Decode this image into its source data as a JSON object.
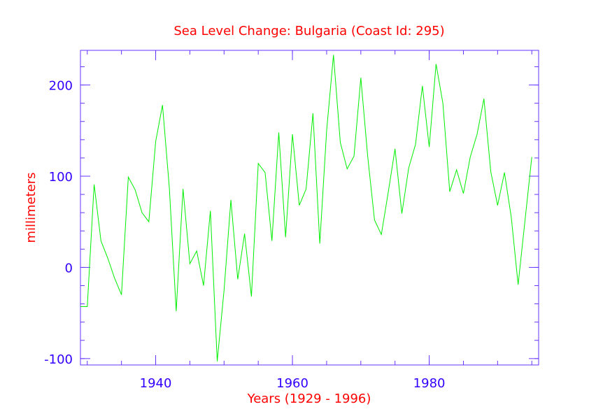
{
  "colors": {
    "title": "#ff0000",
    "axis_label": "#ff0000",
    "tick_label": "#3300ff",
    "frame": "#6633ff",
    "series": "#00ee00"
  },
  "chart_data": {
    "type": "line",
    "title": "Sea Level Change: Bulgaria (Coast Id: 295)",
    "xlabel": "Years (1929 - 1996)",
    "ylabel": "millimeters",
    "xlim": [
      1929,
      1996
    ],
    "ylim": [
      -107,
      238
    ],
    "x_ticks": [
      1940,
      1960,
      1980
    ],
    "y_ticks": [
      -100,
      0,
      100,
      200
    ],
    "x_minor_step": 5,
    "y_minor_step": 20,
    "series": [
      {
        "name": "Bulgaria",
        "x": [
          1929,
          1930,
          1931,
          1932,
          1933,
          1934,
          1935,
          1936,
          1937,
          1938,
          1939,
          1940,
          1941,
          1942,
          1943,
          1944,
          1945,
          1946,
          1947,
          1948,
          1949,
          1950,
          1951,
          1952,
          1953,
          1954,
          1955,
          1956,
          1957,
          1958,
          1959,
          1960,
          1961,
          1962,
          1963,
          1964,
          1965,
          1966,
          1967,
          1968,
          1969,
          1970,
          1971,
          1972,
          1973,
          1974,
          1975,
          1976,
          1977,
          1978,
          1979,
          1980,
          1981,
          1982,
          1983,
          1984,
          1985,
          1986,
          1987,
          1988,
          1989,
          1990,
          1991,
          1992,
          1993,
          1994,
          1995
        ],
        "values": [
          -43,
          -43,
          91,
          29,
          10,
          -12,
          -30,
          99,
          85,
          60,
          50,
          138,
          178,
          87,
          -48,
          86,
          4,
          18,
          -20,
          62,
          -103,
          -25,
          74,
          -13,
          37,
          -32,
          114,
          104,
          29,
          148,
          33,
          146,
          68,
          86,
          169,
          26,
          150,
          233,
          137,
          108,
          122,
          208,
          122,
          52,
          36,
          82,
          130,
          59,
          109,
          135,
          199,
          132,
          223,
          180,
          83,
          107,
          81,
          121,
          146,
          185,
          105,
          68,
          104,
          55,
          -19,
          51,
          121
        ]
      }
    ]
  }
}
